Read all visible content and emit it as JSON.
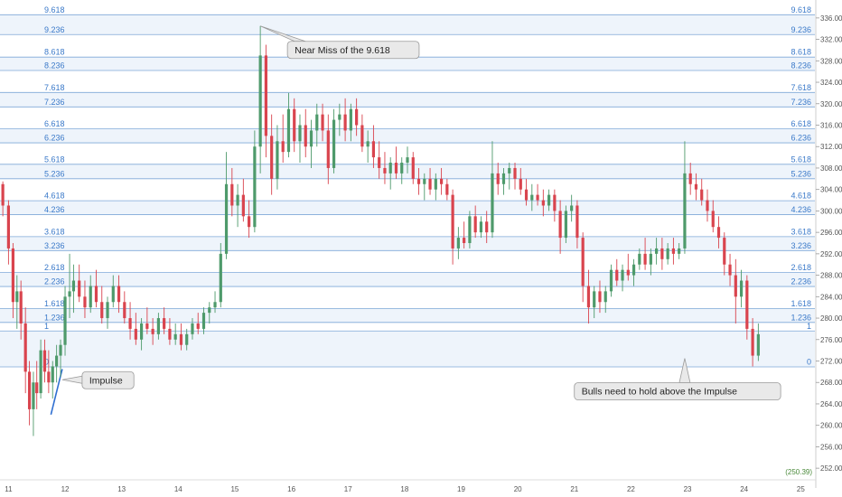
{
  "chart_data": {
    "type": "candlestick",
    "y_axis": {
      "range": [
        250,
        338
      ],
      "ticks": [
        "252.00",
        "256.00",
        "260.00",
        "264.00",
        "268.00",
        "272.00",
        "276.00",
        "280.00",
        "284.00",
        "288.00",
        "292.00",
        "296.00",
        "300.00",
        "304.00",
        "308.00",
        "312.00",
        "316.00",
        "320.00",
        "324.00",
        "328.00",
        "332.00",
        "336.00"
      ]
    },
    "x_axis": {
      "ticks": [
        {
          "label": "11",
          "x": 11
        },
        {
          "label": "12",
          "x": 12
        },
        {
          "label": "13",
          "x": 13
        },
        {
          "label": "14",
          "x": 14
        },
        {
          "label": "15",
          "x": 15
        },
        {
          "label": "16",
          "x": 16
        },
        {
          "label": "17",
          "x": 17
        },
        {
          "label": "18",
          "x": 18
        },
        {
          "label": "19",
          "x": 19
        },
        {
          "label": "20",
          "x": 20
        },
        {
          "label": "21",
          "x": 21
        },
        {
          "label": "22",
          "x": 22
        },
        {
          "label": "23",
          "x": 23
        },
        {
          "label": "24",
          "x": 24
        },
        {
          "label": "25",
          "x": 25
        }
      ],
      "range": [
        10.85,
        25.25
      ]
    },
    "fib_levels": [
      {
        "label": "9.618",
        "price": 336.6
      },
      {
        "label": "9.236",
        "price": 332.9
      },
      {
        "label": "8.618",
        "price": 328.7
      },
      {
        "label": "8.236",
        "price": 326.2
      },
      {
        "label": "7.618",
        "price": 322.1
      },
      {
        "label": "7.236",
        "price": 319.4
      },
      {
        "label": "6.618",
        "price": 315.3
      },
      {
        "label": "6.236",
        "price": 312.7
      },
      {
        "label": "5.618",
        "price": 308.7
      },
      {
        "label": "5.236",
        "price": 306.0
      },
      {
        "label": "4.618",
        "price": 301.9
      },
      {
        "label": "4.236",
        "price": 299.3
      },
      {
        "label": "3.618",
        "price": 295.2
      },
      {
        "label": "3.236",
        "price": 292.6
      },
      {
        "label": "2.618",
        "price": 288.5
      },
      {
        "label": "2.236",
        "price": 285.9
      },
      {
        "label": "1.618",
        "price": 281.8
      },
      {
        "label": "1.236",
        "price": 279.2
      },
      {
        "label": "1",
        "price": 277.6
      },
      {
        "label": "0",
        "price": 270.9
      }
    ],
    "candles": [
      {
        "x": 10.9,
        "o": 305.0,
        "h": 305.5,
        "l": 299.0,
        "c": 301.0
      },
      {
        "x": 11.0,
        "o": 301.0,
        "h": 302.0,
        "l": 290.0,
        "c": 293.0
      },
      {
        "x": 11.08,
        "o": 293.0,
        "h": 294.0,
        "l": 280.0,
        "c": 283.0
      },
      {
        "x": 11.15,
        "o": 283.0,
        "h": 288.0,
        "l": 278.0,
        "c": 285.0
      },
      {
        "x": 11.22,
        "o": 285.0,
        "h": 287.0,
        "l": 276.0,
        "c": 279.0
      },
      {
        "x": 11.3,
        "o": 279.0,
        "h": 282.0,
        "l": 266.0,
        "c": 270.0
      },
      {
        "x": 11.37,
        "o": 270.0,
        "h": 272.0,
        "l": 260.0,
        "c": 263.0
      },
      {
        "x": 11.44,
        "o": 263.0,
        "h": 270.0,
        "l": 258.0,
        "c": 268.0
      },
      {
        "x": 11.5,
        "o": 268.0,
        "h": 272.0,
        "l": 263.0,
        "c": 266.0
      },
      {
        "x": 11.57,
        "o": 266.0,
        "h": 276.0,
        "l": 265.0,
        "c": 274.0
      },
      {
        "x": 11.64,
        "o": 274.0,
        "h": 276.0,
        "l": 268.0,
        "c": 270.0
      },
      {
        "x": 11.71,
        "o": 270.0,
        "h": 274.0,
        "l": 266.0,
        "c": 268.0
      },
      {
        "x": 11.78,
        "o": 268.0,
        "h": 272.0,
        "l": 265.0,
        "c": 271.0
      },
      {
        "x": 11.85,
        "o": 271.0,
        "h": 275.0,
        "l": 268.0,
        "c": 273.0
      },
      {
        "x": 11.92,
        "o": 273.0,
        "h": 276.0,
        "l": 269.0,
        "c": 275.0
      },
      {
        "x": 12.0,
        "o": 275.0,
        "h": 286.0,
        "l": 273.0,
        "c": 284.0
      },
      {
        "x": 12.08,
        "o": 284.0,
        "h": 292.0,
        "l": 280.0,
        "c": 285.0
      },
      {
        "x": 12.15,
        "o": 285.0,
        "h": 290.0,
        "l": 281.0,
        "c": 287.0
      },
      {
        "x": 12.25,
        "o": 287.0,
        "h": 290.0,
        "l": 283.0,
        "c": 284.0
      },
      {
        "x": 12.35,
        "o": 284.0,
        "h": 287.0,
        "l": 280.0,
        "c": 282.0
      },
      {
        "x": 12.45,
        "o": 282.0,
        "h": 288.0,
        "l": 281.0,
        "c": 286.0
      },
      {
        "x": 12.55,
        "o": 286.0,
        "h": 289.0,
        "l": 282.0,
        "c": 283.0
      },
      {
        "x": 12.65,
        "o": 283.0,
        "h": 286.0,
        "l": 279.0,
        "c": 280.0
      },
      {
        "x": 12.75,
        "o": 280.0,
        "h": 284.0,
        "l": 278.0,
        "c": 283.0
      },
      {
        "x": 12.85,
        "o": 283.0,
        "h": 288.0,
        "l": 282.0,
        "c": 286.0
      },
      {
        "x": 12.95,
        "o": 286.0,
        "h": 288.0,
        "l": 281.0,
        "c": 283.0
      },
      {
        "x": 13.05,
        "o": 283.0,
        "h": 285.0,
        "l": 279.0,
        "c": 280.0
      },
      {
        "x": 13.15,
        "o": 280.0,
        "h": 283.0,
        "l": 276.0,
        "c": 278.0
      },
      {
        "x": 13.25,
        "o": 278.0,
        "h": 281.0,
        "l": 275.0,
        "c": 276.0
      },
      {
        "x": 13.35,
        "o": 276.0,
        "h": 280.0,
        "l": 274.0,
        "c": 279.0
      },
      {
        "x": 13.45,
        "o": 279.0,
        "h": 282.0,
        "l": 277.0,
        "c": 278.0
      },
      {
        "x": 13.55,
        "o": 278.0,
        "h": 280.0,
        "l": 275.0,
        "c": 277.0
      },
      {
        "x": 13.65,
        "o": 277.0,
        "h": 281.0,
        "l": 276.0,
        "c": 280.0
      },
      {
        "x": 13.75,
        "o": 280.0,
        "h": 282.0,
        "l": 277.0,
        "c": 278.0
      },
      {
        "x": 13.85,
        "o": 278.0,
        "h": 280.0,
        "l": 275.0,
        "c": 276.0
      },
      {
        "x": 13.95,
        "o": 276.0,
        "h": 279.0,
        "l": 275.0,
        "c": 277.0
      },
      {
        "x": 14.05,
        "o": 277.0,
        "h": 279.0,
        "l": 274.0,
        "c": 275.0
      },
      {
        "x": 14.15,
        "o": 275.0,
        "h": 278.0,
        "l": 274.0,
        "c": 277.0
      },
      {
        "x": 14.25,
        "o": 277.0,
        "h": 280.0,
        "l": 276.0,
        "c": 279.0
      },
      {
        "x": 14.35,
        "o": 279.0,
        "h": 281.0,
        "l": 277.0,
        "c": 278.0
      },
      {
        "x": 14.45,
        "o": 278.0,
        "h": 282.0,
        "l": 277.0,
        "c": 281.0
      },
      {
        "x": 14.55,
        "o": 281.0,
        "h": 283.0,
        "l": 279.0,
        "c": 282.0
      },
      {
        "x": 14.65,
        "o": 282.0,
        "h": 285.0,
        "l": 281.0,
        "c": 283.0
      },
      {
        "x": 14.75,
        "o": 283.0,
        "h": 294.0,
        "l": 282.0,
        "c": 292.0
      },
      {
        "x": 14.85,
        "o": 292.0,
        "h": 311.0,
        "l": 291.0,
        "c": 305.0
      },
      {
        "x": 14.95,
        "o": 305.0,
        "h": 308.0,
        "l": 299.0,
        "c": 301.0
      },
      {
        "x": 15.05,
        "o": 301.0,
        "h": 305.0,
        "l": 297.0,
        "c": 303.0
      },
      {
        "x": 15.15,
        "o": 303.0,
        "h": 306.0,
        "l": 298.0,
        "c": 299.0
      },
      {
        "x": 15.25,
        "o": 299.0,
        "h": 302.0,
        "l": 295.0,
        "c": 297.0
      },
      {
        "x": 15.35,
        "o": 297.0,
        "h": 315.0,
        "l": 296.0,
        "c": 312.0
      },
      {
        "x": 15.45,
        "o": 312.0,
        "h": 334.5,
        "l": 307.0,
        "c": 329.0
      },
      {
        "x": 15.55,
        "o": 329.0,
        "h": 331.0,
        "l": 310.0,
        "c": 314.0
      },
      {
        "x": 15.65,
        "o": 314.0,
        "h": 318.0,
        "l": 303.0,
        "c": 306.0
      },
      {
        "x": 15.75,
        "o": 306.0,
        "h": 316.0,
        "l": 304.0,
        "c": 313.0
      },
      {
        "x": 15.85,
        "o": 313.0,
        "h": 318.0,
        "l": 309.0,
        "c": 311.0
      },
      {
        "x": 15.95,
        "o": 311.0,
        "h": 322.0,
        "l": 310.0,
        "c": 319.0
      },
      {
        "x": 16.05,
        "o": 319.0,
        "h": 321.0,
        "l": 311.0,
        "c": 313.0
      },
      {
        "x": 16.15,
        "o": 313.0,
        "h": 318.0,
        "l": 309.0,
        "c": 316.0
      },
      {
        "x": 16.25,
        "o": 316.0,
        "h": 319.0,
        "l": 310.0,
        "c": 312.0
      },
      {
        "x": 16.35,
        "o": 312.0,
        "h": 317.0,
        "l": 308.0,
        "c": 315.0
      },
      {
        "x": 16.45,
        "o": 315.0,
        "h": 320.0,
        "l": 312.0,
        "c": 318.0
      },
      {
        "x": 16.55,
        "o": 318.0,
        "h": 320.0,
        "l": 313.0,
        "c": 315.0
      },
      {
        "x": 16.65,
        "o": 315.0,
        "h": 318.0,
        "l": 305.0,
        "c": 308.0
      },
      {
        "x": 16.75,
        "o": 308.0,
        "h": 319.0,
        "l": 307.0,
        "c": 317.0
      },
      {
        "x": 16.85,
        "o": 317.0,
        "h": 320.0,
        "l": 314.0,
        "c": 318.0
      },
      {
        "x": 16.95,
        "o": 318.0,
        "h": 321.0,
        "l": 313.0,
        "c": 315.0
      },
      {
        "x": 17.05,
        "o": 315.0,
        "h": 320.0,
        "l": 313.0,
        "c": 319.0
      },
      {
        "x": 17.15,
        "o": 319.0,
        "h": 321.0,
        "l": 314.0,
        "c": 316.0
      },
      {
        "x": 17.25,
        "o": 316.0,
        "h": 318.0,
        "l": 311.0,
        "c": 312.0
      },
      {
        "x": 17.35,
        "o": 312.0,
        "h": 315.0,
        "l": 309.0,
        "c": 313.0
      },
      {
        "x": 17.45,
        "o": 313.0,
        "h": 316.0,
        "l": 308.0,
        "c": 310.0
      },
      {
        "x": 17.55,
        "o": 310.0,
        "h": 313.0,
        "l": 306.0,
        "c": 308.0
      },
      {
        "x": 17.65,
        "o": 308.0,
        "h": 311.0,
        "l": 305.0,
        "c": 307.0
      },
      {
        "x": 17.75,
        "o": 307.0,
        "h": 310.0,
        "l": 304.0,
        "c": 309.0
      },
      {
        "x": 17.85,
        "o": 309.0,
        "h": 312.0,
        "l": 306.0,
        "c": 307.0
      },
      {
        "x": 17.95,
        "o": 307.0,
        "h": 310.0,
        "l": 305.0,
        "c": 309.0
      },
      {
        "x": 18.05,
        "o": 309.0,
        "h": 312.0,
        "l": 307.0,
        "c": 310.0
      },
      {
        "x": 18.15,
        "o": 310.0,
        "h": 311.0,
        "l": 305.0,
        "c": 306.0
      },
      {
        "x": 18.25,
        "o": 306.0,
        "h": 308.0,
        "l": 303.0,
        "c": 305.0
      },
      {
        "x": 18.35,
        "o": 305.0,
        "h": 307.0,
        "l": 302.0,
        "c": 306.0
      },
      {
        "x": 18.45,
        "o": 306.0,
        "h": 308.0,
        "l": 303.0,
        "c": 304.0
      },
      {
        "x": 18.55,
        "o": 304.0,
        "h": 307.0,
        "l": 302.0,
        "c": 306.0
      },
      {
        "x": 18.65,
        "o": 306.0,
        "h": 308.0,
        "l": 303.0,
        "c": 305.0
      },
      {
        "x": 18.75,
        "o": 305.0,
        "h": 306.0,
        "l": 302.0,
        "c": 303.0
      },
      {
        "x": 18.85,
        "o": 303.0,
        "h": 304.0,
        "l": 290.0,
        "c": 293.0
      },
      {
        "x": 18.95,
        "o": 293.0,
        "h": 297.0,
        "l": 291.0,
        "c": 295.0
      },
      {
        "x": 19.05,
        "o": 295.0,
        "h": 298.0,
        "l": 293.0,
        "c": 294.0
      },
      {
        "x": 19.15,
        "o": 294.0,
        "h": 300.0,
        "l": 293.0,
        "c": 299.0
      },
      {
        "x": 19.25,
        "o": 299.0,
        "h": 301.0,
        "l": 295.0,
        "c": 296.0
      },
      {
        "x": 19.35,
        "o": 296.0,
        "h": 299.0,
        "l": 295.0,
        "c": 298.0
      },
      {
        "x": 19.45,
        "o": 298.0,
        "h": 300.0,
        "l": 294.0,
        "c": 296.0
      },
      {
        "x": 19.55,
        "o": 296.0,
        "h": 313.0,
        "l": 295.0,
        "c": 307.0
      },
      {
        "x": 19.65,
        "o": 307.0,
        "h": 309.0,
        "l": 303.0,
        "c": 305.0
      },
      {
        "x": 19.75,
        "o": 305.0,
        "h": 308.0,
        "l": 303.0,
        "c": 307.0
      },
      {
        "x": 19.85,
        "o": 307.0,
        "h": 309.0,
        "l": 304.0,
        "c": 308.0
      },
      {
        "x": 19.95,
        "o": 308.0,
        "h": 309.0,
        "l": 304.0,
        "c": 306.0
      },
      {
        "x": 20.05,
        "o": 306.0,
        "h": 308.0,
        "l": 303.0,
        "c": 304.0
      },
      {
        "x": 20.15,
        "o": 304.0,
        "h": 306.0,
        "l": 301.0,
        "c": 302.0
      },
      {
        "x": 20.25,
        "o": 302.0,
        "h": 305.0,
        "l": 300.0,
        "c": 303.0
      },
      {
        "x": 20.35,
        "o": 303.0,
        "h": 305.0,
        "l": 301.0,
        "c": 302.0
      },
      {
        "x": 20.45,
        "o": 302.0,
        "h": 304.0,
        "l": 299.0,
        "c": 301.0
      },
      {
        "x": 20.55,
        "o": 301.0,
        "h": 304.0,
        "l": 300.0,
        "c": 303.0
      },
      {
        "x": 20.65,
        "o": 303.0,
        "h": 304.0,
        "l": 298.0,
        "c": 300.0
      },
      {
        "x": 20.75,
        "o": 300.0,
        "h": 302.0,
        "l": 292.0,
        "c": 295.0
      },
      {
        "x": 20.85,
        "o": 295.0,
        "h": 301.0,
        "l": 294.0,
        "c": 300.0
      },
      {
        "x": 20.95,
        "o": 300.0,
        "h": 303.0,
        "l": 298.0,
        "c": 301.0
      },
      {
        "x": 21.05,
        "o": 301.0,
        "h": 302.0,
        "l": 293.0,
        "c": 295.0
      },
      {
        "x": 21.15,
        "o": 295.0,
        "h": 296.0,
        "l": 283.0,
        "c": 286.0
      },
      {
        "x": 21.25,
        "o": 286.0,
        "h": 289.0,
        "l": 279.0,
        "c": 282.0
      },
      {
        "x": 21.35,
        "o": 282.0,
        "h": 286.0,
        "l": 280.0,
        "c": 285.0
      },
      {
        "x": 21.45,
        "o": 285.0,
        "h": 287.0,
        "l": 281.0,
        "c": 283.0
      },
      {
        "x": 21.55,
        "o": 283.0,
        "h": 286.0,
        "l": 281.0,
        "c": 285.0
      },
      {
        "x": 21.65,
        "o": 285.0,
        "h": 290.0,
        "l": 284.0,
        "c": 289.0
      },
      {
        "x": 21.75,
        "o": 289.0,
        "h": 291.0,
        "l": 286.0,
        "c": 287.0
      },
      {
        "x": 21.85,
        "o": 287.0,
        "h": 290.0,
        "l": 285.0,
        "c": 289.0
      },
      {
        "x": 21.95,
        "o": 289.0,
        "h": 292.0,
        "l": 287.0,
        "c": 288.0
      },
      {
        "x": 22.05,
        "o": 288.0,
        "h": 291.0,
        "l": 286.0,
        "c": 290.0
      },
      {
        "x": 22.15,
        "o": 290.0,
        "h": 293.0,
        "l": 289.0,
        "c": 292.0
      },
      {
        "x": 22.25,
        "o": 292.0,
        "h": 295.0,
        "l": 289.0,
        "c": 290.0
      },
      {
        "x": 22.35,
        "o": 290.0,
        "h": 293.0,
        "l": 288.0,
        "c": 292.0
      },
      {
        "x": 22.45,
        "o": 292.0,
        "h": 295.0,
        "l": 290.0,
        "c": 293.0
      },
      {
        "x": 22.55,
        "o": 293.0,
        "h": 295.0,
        "l": 289.0,
        "c": 291.0
      },
      {
        "x": 22.65,
        "o": 291.0,
        "h": 294.0,
        "l": 290.0,
        "c": 293.0
      },
      {
        "x": 22.75,
        "o": 293.0,
        "h": 295.0,
        "l": 290.0,
        "c": 292.0
      },
      {
        "x": 22.85,
        "o": 292.0,
        "h": 294.0,
        "l": 291.0,
        "c": 293.0
      },
      {
        "x": 22.95,
        "o": 293.0,
        "h": 313.0,
        "l": 292.0,
        "c": 307.0
      },
      {
        "x": 23.05,
        "o": 307.0,
        "h": 309.0,
        "l": 303.0,
        "c": 305.0
      },
      {
        "x": 23.15,
        "o": 305.0,
        "h": 307.0,
        "l": 302.0,
        "c": 304.0
      },
      {
        "x": 23.25,
        "o": 304.0,
        "h": 306.0,
        "l": 301.0,
        "c": 302.0
      },
      {
        "x": 23.35,
        "o": 302.0,
        "h": 304.0,
        "l": 298.0,
        "c": 300.0
      },
      {
        "x": 23.45,
        "o": 300.0,
        "h": 302.0,
        "l": 296.0,
        "c": 297.0
      },
      {
        "x": 23.55,
        "o": 297.0,
        "h": 299.0,
        "l": 293.0,
        "c": 295.0
      },
      {
        "x": 23.65,
        "o": 295.0,
        "h": 296.0,
        "l": 288.0,
        "c": 290.0
      },
      {
        "x": 23.75,
        "o": 290.0,
        "h": 292.0,
        "l": 286.0,
        "c": 288.0
      },
      {
        "x": 23.85,
        "o": 288.0,
        "h": 291.0,
        "l": 279.0,
        "c": 284.0
      },
      {
        "x": 23.95,
        "o": 284.0,
        "h": 289.0,
        "l": 282.0,
        "c": 287.0
      },
      {
        "x": 24.05,
        "o": 287.0,
        "h": 288.0,
        "l": 276.0,
        "c": 278.0
      },
      {
        "x": 24.15,
        "o": 278.0,
        "h": 280.0,
        "l": 271.0,
        "c": 273.0
      },
      {
        "x": 24.25,
        "o": 273.0,
        "h": 279.0,
        "l": 272.0,
        "c": 277.0
      }
    ],
    "impulse_line": [
      {
        "x": 11.75,
        "y": 262.0
      },
      {
        "x": 11.95,
        "y": 270.5
      }
    ],
    "annotations": [
      {
        "text": "Near Miss of the 9.618",
        "anchor": {
          "x": 15.45,
          "y": 334.5
        }
      },
      {
        "text": "Impulse",
        "anchor": {
          "x": 11.95,
          "y": 268.5
        }
      },
      {
        "text": "Bulls need to hold above the Impulse",
        "anchor": {
          "x": 22.95,
          "y": 272.5
        }
      }
    ],
    "price_tag": "(250.39)"
  },
  "colors": {
    "fib_line": "#7fa8d8",
    "fib_band": "#eef4fb",
    "fib_label": "#3a79c9",
    "bull": "#4e9a6b",
    "bear": "#d9444e",
    "impulse": "#2f6fd1",
    "callout_fill": "#e9e9e9",
    "callout_stroke": "#9a9a9a"
  }
}
